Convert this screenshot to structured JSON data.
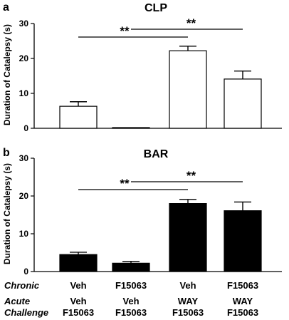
{
  "panel_a": {
    "letter": "a"
  },
  "panel_b": {
    "letter": "b"
  },
  "chart_data": [
    {
      "type": "bar",
      "title": "CLP",
      "ylabel": "Duration of Catalepsy  (s)",
      "ylim": [
        0,
        30
      ],
      "yticks": [
        0,
        10,
        20,
        30
      ],
      "categories": [
        "Veh / Veh F15063",
        "Veh / F15063",
        "WAY F15063",
        "F15063 / WAY F15063"
      ],
      "values": [
        6.3,
        0.2,
        22.2,
        14.1
      ],
      "errors": [
        1.3,
        0,
        1.3,
        2.3
      ],
      "bar_color": "#ffffff",
      "significance": [
        {
          "from": 0,
          "to": 2,
          "label": "**"
        },
        {
          "from": 1,
          "to": 3,
          "label": "**"
        }
      ]
    },
    {
      "type": "bar",
      "title": "BAR",
      "ylabel": "Duration of Catalepsy  (s)",
      "ylim": [
        0,
        30
      ],
      "yticks": [
        0,
        10,
        20,
        30
      ],
      "categories": [
        "Veh / Veh F15063",
        "Veh / F15063",
        "WAY F15063",
        "F15063 / WAY F15063"
      ],
      "values": [
        4.5,
        2.2,
        18.0,
        16.1
      ],
      "errors": [
        0.6,
        0.5,
        1.1,
        2.3
      ],
      "bar_color": "#000000",
      "significance": [
        {
          "from": 0,
          "to": 2,
          "label": "**"
        },
        {
          "from": 1,
          "to": 3,
          "label": "**"
        }
      ]
    }
  ],
  "table": {
    "chronic_label": "Chronic",
    "acute_label_line1": "Acute",
    "acute_label_line2": "Challenge",
    "chronic": [
      "Veh",
      "F15063",
      "Veh",
      "F15063"
    ],
    "acute_line1": [
      "Veh",
      "Veh",
      "WAY",
      "WAY"
    ],
    "acute_line2": [
      "F15063",
      "F15063",
      "F15063",
      "F15063"
    ]
  }
}
